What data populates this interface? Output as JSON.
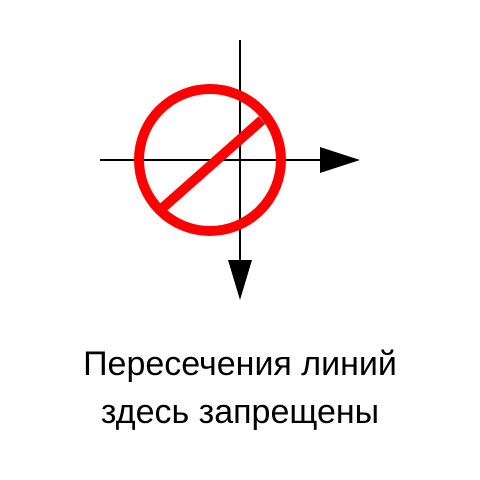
{
  "caption": {
    "line1": "Пересечения линий",
    "line2": "здесь запрещены"
  },
  "colors": {
    "line": "#000000",
    "prohibition": "#ff0000",
    "background": "#ffffff"
  },
  "icons": {
    "prohibition": "no-crossing-sign-icon",
    "arrow_right": "arrow-right-icon",
    "arrow_down": "arrow-down-icon"
  }
}
